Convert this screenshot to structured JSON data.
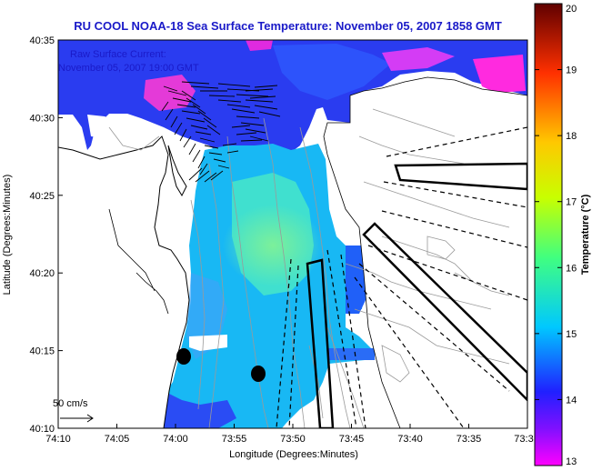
{
  "title": "RU COOL  NOAA-18  Sea Surface Temperature:  November 05, 2007 1858 GMT",
  "overlay": {
    "line1": "Raw Surface Current:",
    "line2": "November 05, 2007 19:00 GMT"
  },
  "scale_label": "50 cm/s",
  "axes": {
    "xlabel": "Longitude (Degrees:Minutes)",
    "ylabel": "Latitude (Degrees:Minutes)",
    "x_ticks": [
      "74:10",
      "74:05",
      "74:00",
      "73:55",
      "73:50",
      "73:45",
      "73:40",
      "73:35",
      "73:3"
    ],
    "y_ticks": [
      "40:35",
      "40:30",
      "40:25",
      "40:20",
      "40:15",
      "40:10"
    ]
  },
  "colorbar": {
    "label": "Temperature (°C)",
    "ticks": [
      "20",
      "19",
      "18",
      "17",
      "16",
      "15",
      "14",
      "13"
    ],
    "min": 13,
    "max": 20,
    "colors": [
      "#ff00ff",
      "#2020ff",
      "#00c8ff",
      "#40ff80",
      "#c8ff00",
      "#ffc800",
      "#ff3000",
      "#600000"
    ]
  },
  "colors": {
    "title": "#1a1ac8",
    "land": "#ffffff",
    "coastline": "#000000",
    "bathymetry": "#9a9a9a"
  }
}
